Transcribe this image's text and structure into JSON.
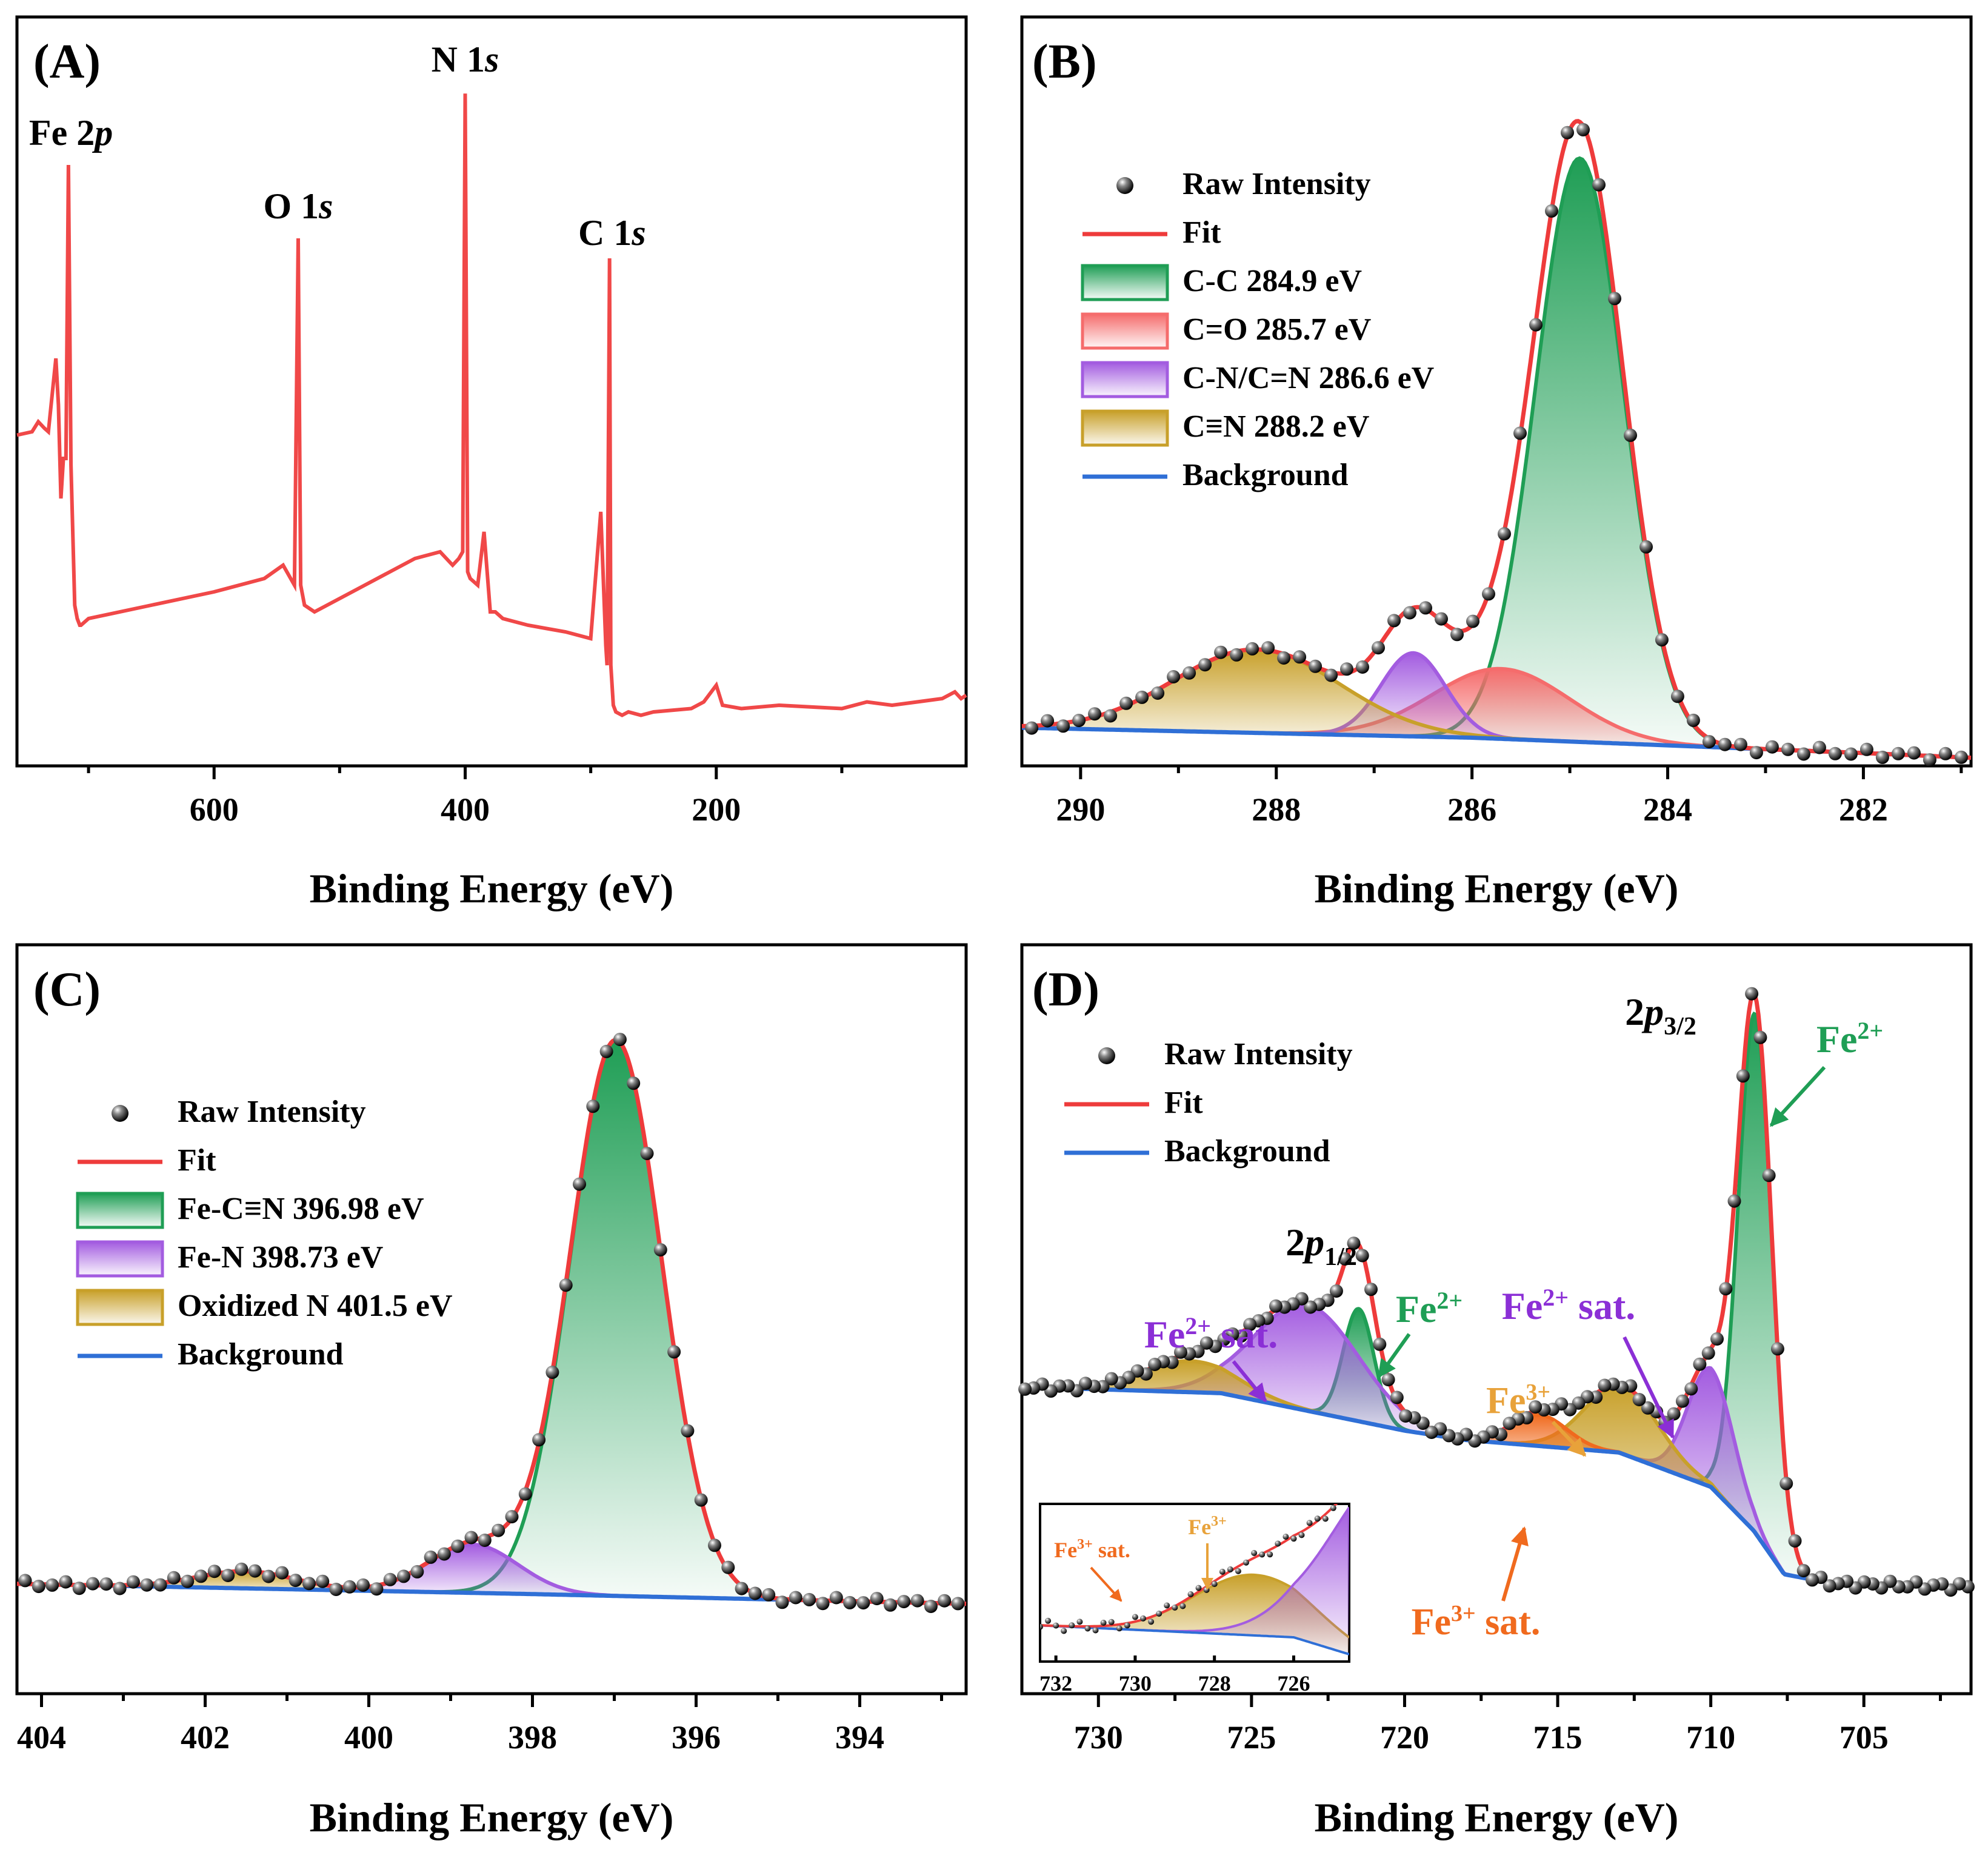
{
  "chart_data": [
    {
      "panel": "(A)",
      "type": "line",
      "xlabel": "Binding Energy (eV)",
      "xlim": [
        1,
        757
      ],
      "x_reversed": true,
      "yticks_shown": false,
      "xticks": [
        600,
        400,
        200
      ],
      "minor_xticks": [
        700,
        500,
        300,
        100
      ],
      "ylim": [
        0,
        1
      ],
      "series": [
        {
          "color": "#f04848",
          "x": [
            757,
            745,
            740,
            735,
            732,
            726,
            724,
            722,
            720,
            718,
            716,
            714,
            711,
            709,
            707,
            706,
            700,
            650,
            600,
            560,
            545,
            536,
            533,
            531,
            528,
            520,
            480,
            440,
            420,
            410,
            405,
            402,
            400,
            398,
            396,
            390,
            385,
            380,
            376,
            370,
            350,
            320,
            300,
            292,
            288,
            287,
            285,
            284,
            282,
            280,
            275,
            270,
            260,
            250,
            220,
            210,
            200,
            195,
            180,
            150,
            100,
            80,
            60,
            40,
            20,
            10,
            5,
            1
          ],
          "y": [
            0.475,
            0.48,
            0.495,
            0.485,
            0.48,
            0.59,
            0.52,
            0.38,
            0.44,
            0.44,
            0.88,
            0.43,
            0.22,
            0.2,
            0.19,
            0.19,
            0.2,
            0.22,
            0.24,
            0.26,
            0.28,
            0.25,
            0.77,
            0.25,
            0.22,
            0.21,
            0.25,
            0.29,
            0.3,
            0.28,
            0.29,
            0.3,
            0.987,
            0.27,
            0.26,
            0.25,
            0.33,
            0.21,
            0.21,
            0.2,
            0.19,
            0.18,
            0.17,
            0.36,
            0.16,
            0.13,
            0.74,
            0.13,
            0.07,
            0.06,
            0.055,
            0.06,
            0.055,
            0.06,
            0.065,
            0.075,
            0.1,
            0.07,
            0.065,
            0.07,
            0.065,
            0.075,
            0.07,
            0.075,
            0.08,
            0.09,
            0.08,
            0.085
          ]
        }
      ],
      "peak_labels": [
        {
          "x": 714,
          "y": 0.91,
          "text": "Fe 2",
          "italic": "p"
        },
        {
          "x": 533,
          "y": 0.8,
          "text": "O 1",
          "italic": "s"
        },
        {
          "x": 400,
          "y": 1.02,
          "text": "N 1",
          "italic": "s"
        },
        {
          "x": 283,
          "y": 0.76,
          "text": "C 1",
          "italic": "s"
        }
      ]
    },
    {
      "panel": "(B)",
      "type": "area",
      "xlabel": "Binding Energy (eV)",
      "xlim": [
        280.9,
        290.6
      ],
      "x_reversed": true,
      "xticks": [
        290,
        288,
        286,
        284,
        282
      ],
      "minor_xticks": [
        289,
        287,
        285,
        283,
        281
      ],
      "ylim": [
        0,
        1
      ],
      "background": [
        [
          290.6,
          0.05
        ],
        [
          286,
          0.035
        ],
        [
          282,
          0.012
        ],
        [
          280.9,
          0.005
        ]
      ],
      "components": [
        {
          "name": "C-C 284.9 eV",
          "center": 284.9,
          "height": 0.875,
          "width": 0.45,
          "color": "#1f9e55"
        },
        {
          "name": "C=O 285.7 eV",
          "center": 285.7,
          "height": 0.105,
          "width": 0.7,
          "color": "#f56c6c"
        },
        {
          "name": "C-N/C=N 286.6 eV",
          "center": 286.6,
          "height": 0.125,
          "width": 0.33,
          "color": "#a35ce0"
        },
        {
          "name": "C≡N 288.2 eV",
          "center": 288.2,
          "height": 0.125,
          "width": 0.85,
          "color": "#c8a02a"
        }
      ],
      "raw_x_range": [
        281.0,
        290.5
      ],
      "raw_count": 60,
      "legend": [
        "Raw Intensity",
        "Fit",
        "C-C 284.9 eV",
        "C=O 285.7 eV",
        "C-N/C=N 286.6 eV",
        "C≡N 288.2 eV",
        "Background"
      ],
      "legend_location": "upper-left"
    },
    {
      "panel": "(C)",
      "type": "area",
      "xlabel": "Binding Energy (eV)",
      "xlim": [
        392.7,
        404.3
      ],
      "x_reversed": true,
      "xticks": [
        404,
        402,
        400,
        398,
        396,
        394
      ],
      "minor_xticks": [
        403,
        401,
        399,
        397,
        395,
        393
      ],
      "ylim": [
        0,
        1
      ],
      "background": [
        [
          404.3,
          0.03
        ],
        [
          398,
          0.012
        ],
        [
          392.7,
          -0.005
        ]
      ],
      "components": [
        {
          "name": "Fe-C≡N 396.98 eV",
          "center": 396.98,
          "height": 0.975,
          "width": 0.56,
          "color": "#1f9e55"
        },
        {
          "name": "Fe-N  398.73 eV",
          "center": 398.73,
          "height": 0.085,
          "width": 0.55,
          "color": "#a35ce0"
        },
        {
          "name": "Oxidized N  401.5 eV",
          "center": 401.5,
          "height": 0.03,
          "width": 0.6,
          "color": "#c8a02a"
        }
      ],
      "raw_x_range": [
        392.8,
        404.2
      ],
      "raw_count": 70,
      "legend": [
        "Raw Intensity",
        "Fit",
        "Fe-C≡N 396.98 eV",
        "Fe-N  398.73 eV",
        "Oxidized N  401.5 eV",
        "Background"
      ],
      "legend_location": "upper-left"
    },
    {
      "panel": "(D)",
      "type": "area",
      "xlabel": "Binding Energy (eV)",
      "xlim": [
        701.5,
        732.5
      ],
      "x_reversed": true,
      "xticks": [
        730,
        725,
        720,
        715,
        710,
        705
      ],
      "minor_xticks": [
        727.5,
        722.5,
        717.5,
        712.5,
        707.5,
        702.5
      ],
      "ylim": [
        0,
        1
      ],
      "background": [
        [
          732.5,
          0.43
        ],
        [
          726,
          0.42
        ],
        [
          720,
          0.36
        ],
        [
          718,
          0.345
        ],
        [
          713,
          0.325
        ],
        [
          710,
          0.27
        ],
        [
          708.6,
          0.2
        ],
        [
          707.6,
          0.13
        ],
        [
          706,
          0.115
        ],
        [
          701.5,
          0.11
        ]
      ],
      "components": [
        {
          "name": "Fe2+ 2p3/2",
          "center": 708.55,
          "height": 0.83,
          "width": 0.55,
          "color": "#1f9e55"
        },
        {
          "name": "Fe2+ 2p1/2",
          "center": 721.5,
          "height": 0.18,
          "width": 0.5,
          "color": "#1f9e55"
        },
        {
          "name": "Fe2+ sat. (2p3/2)",
          "center": 710.0,
          "height": 0.19,
          "width": 0.75,
          "color": "#a35ce0"
        },
        {
          "name": "Fe2+ sat. (2p1/2)",
          "center": 723.2,
          "height": 0.17,
          "width": 1.7,
          "color": "#a35ce0"
        },
        {
          "name": "Fe3+ (2p3/2)",
          "center": 712.9,
          "height": 0.11,
          "width": 1.2,
          "color": "#c8a02a"
        },
        {
          "name": "Fe3+ sat. (2p3/2)",
          "center": 715.6,
          "height": 0.05,
          "width": 0.9,
          "color": "#f06a1e"
        },
        {
          "name": "Fe3+ (2p1/2)",
          "center": 727.0,
          "height": 0.05,
          "width": 1.5,
          "color": "#c8a02a"
        }
      ],
      "raw_x_range": [
        701.6,
        732.4
      ],
      "raw_count": 110,
      "legend": [
        "Raw Intensity",
        "Fit",
        "Background"
      ],
      "legend_location": "upper-left",
      "peak_labels": {
        "p32": {
          "base": "2",
          "italic": "p",
          "sub": "3/2"
        },
        "p12": {
          "base": "2",
          "italic": "p",
          "sub": "1/2"
        },
        "fe2": {
          "text": "Fe",
          "sup": "2+"
        },
        "fe2sat": {
          "text": "Fe",
          "sup": "2+",
          "tail": " sat."
        },
        "fe3": {
          "text": "Fe",
          "sup": "3+"
        },
        "fe3sat": {
          "text": "Fe",
          "sup": "3+",
          "tail": " sat."
        }
      },
      "inset": {
        "xlim": [
          724.6,
          732.4
        ],
        "x_reversed": true,
        "xticks": [
          732,
          730,
          728,
          726
        ],
        "labels": {
          "fe3sat": {
            "text": "Fe",
            "sup": "3+",
            "tail": " sat."
          },
          "fe3": {
            "text": "Fe",
            "sup": "3+"
          }
        }
      }
    }
  ],
  "colors": {
    "raw": "#2b2b2b",
    "fit": "#ee3b3b",
    "background": "#2f6fd6",
    "green": "#1f9e55",
    "red": "#f56c6c",
    "purple": "#a35ce0",
    "gold": "#c8a02a",
    "orange": "#f06a1e"
  }
}
